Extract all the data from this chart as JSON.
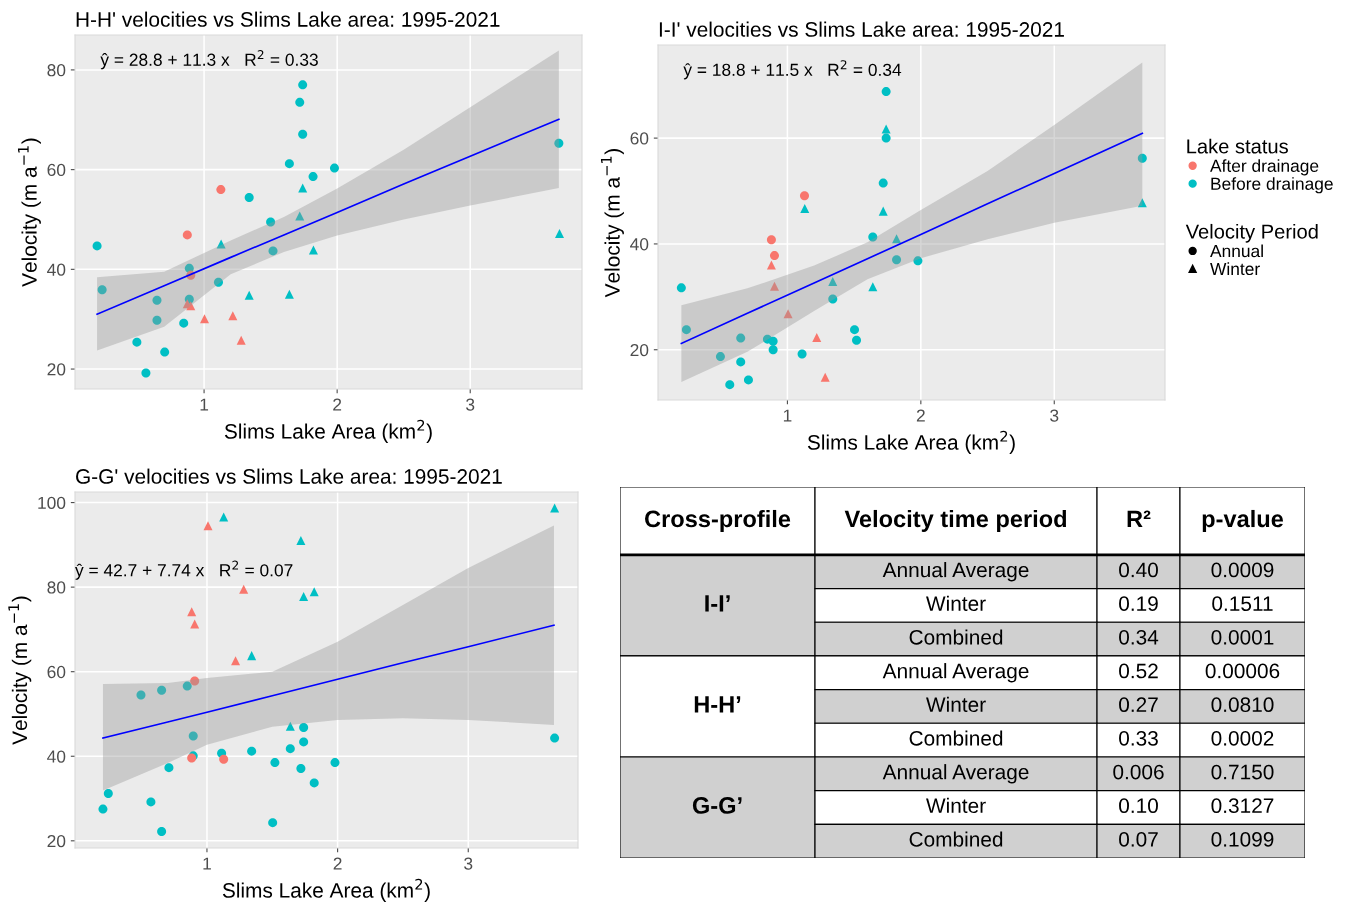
{
  "chart_data": [
    {
      "type": "scatter",
      "title": "H-H' velocities vs Slims Lake area: 1995-2021",
      "xlabel": "Slims Lake Area (km$^{2}$)",
      "ylabel": "Velocity (m a$^{−1}$)",
      "xlim": [
        0.03,
        3.84
      ],
      "ylim": [
        16,
        87
      ],
      "xticks": [
        1,
        2,
        3
      ],
      "yticks": [
        20,
        40,
        60,
        80
      ],
      "grid": true,
      "annotations": [
        "ŷ = 28.8 + 11.3 x   R$^{2}$ = 0.33"
      ],
      "series": [
        {
          "color": "#00bfc4",
          "marker": "circle",
          "x": [
            0.196,
            0.234,
            1.741,
            1.719,
            1.741,
            1.641,
            1.98,
            1.819,
            3.666,
            1.339,
            1.5,
            1.518,
            0.889,
            1.108,
            0.646,
            0.889,
            0.646,
            0.847,
            0.495,
            0.704,
            0.563
          ],
          "values": [
            44.7,
            35.9,
            77.0,
            73.5,
            67.1,
            61.2,
            60.3,
            58.6,
            65.3,
            54.4,
            49.5,
            43.7,
            40.2,
            37.4,
            33.8,
            34.0,
            29.8,
            29.2,
            25.4,
            23.4,
            19.2
          ]
        },
        {
          "color": "#00bfc4",
          "marker": "triangle",
          "x": [
            1.741,
            1.719,
            1.128,
            1.822,
            1.339,
            1.641,
            3.671
          ],
          "values": [
            56.3,
            50.7,
            45.1,
            43.9,
            34.8,
            35.0,
            47.2
          ]
        },
        {
          "color": "#f8766d",
          "marker": "circle",
          "x": [
            1.126,
            0.874,
            0.9
          ],
          "values": [
            56.0,
            46.9,
            38.8
          ]
        },
        {
          "color": "#f8766d",
          "marker": "triangle",
          "x": [
            0.874,
            0.9,
            1.003,
            1.216,
            1.279
          ],
          "values": [
            33.1,
            32.7,
            30.1,
            30.7,
            25.8
          ]
        },
        {
          "type": "line",
          "color": "#0000ff",
          "x": [
            0.196,
            0.7,
            1.2,
            1.6,
            2.0,
            2.5,
            3.0,
            3.666
          ],
          "values": [
            31.0,
            36.7,
            42.4,
            46.9,
            51.4,
            57.1,
            62.7,
            70.1
          ],
          "lower": [
            23.7,
            28.5,
            39.0,
            43.5,
            46.8,
            50.0,
            52.8,
            56.3
          ],
          "upper": [
            38.4,
            39.5,
            45.8,
            50.5,
            56.2,
            64.0,
            72.5,
            83.9
          ]
        }
      ]
    },
    {
      "type": "scatter",
      "title": "I-I' velocities vs Slims Lake area: 1995-2021",
      "xlabel": "Slims Lake Area (km$^{2}$)",
      "ylabel": "Velocity (m a$^{−1}$)",
      "xlim": [
        0.03,
        3.83
      ],
      "ylim": [
        10.5,
        77.6
      ],
      "xticks": [
        1,
        2,
        3
      ],
      "yticks": [
        20,
        40,
        60
      ],
      "grid": true,
      "legend": "right",
      "legend_title": "Lake status",
      "annotations": [
        "ŷ = 18.8 + 11.5 x   R$^{2}$ = 0.34",
        "Velocity Period",
        "Annual",
        "Winter"
      ],
      "series": [
        {
          "name": "After drainage",
          "color": "#f8766d",
          "marker": "circle",
          "x": [
            1.128,
            0.88,
            0.903
          ],
          "values": [
            49.1,
            40.8,
            37.8
          ]
        },
        {
          "color": "#f8766d",
          "marker": "triangle",
          "x": [
            0.88,
            0.903,
            1.005,
            1.22,
            1.283
          ],
          "values": [
            36.0,
            32.0,
            26.8,
            22.3,
            14.8
          ]
        },
        {
          "name": "Before drainage",
          "color": "#00bfc4",
          "marker": "circle",
          "x": [
            0.205,
            0.243,
            1.74,
            1.74,
            1.718,
            3.66,
            1.64,
            1.818,
            1.978,
            1.34,
            0.65,
            0.498,
            0.65,
            0.568,
            0.708,
            0.85,
            0.893,
            0.893,
            1.11,
            1.503,
            1.518
          ],
          "values": [
            31.7,
            23.8,
            68.8,
            60.0,
            51.5,
            56.2,
            41.3,
            37.0,
            36.8,
            29.6,
            22.2,
            18.7,
            17.7,
            13.4,
            14.3,
            22.0,
            21.6,
            20.0,
            19.2,
            23.8,
            21.8
          ]
        },
        {
          "color": "#00bfc4",
          "marker": "triangle",
          "x": [
            1.74,
            1.718,
            1.13,
            1.818,
            1.34,
            1.64,
            3.66
          ],
          "values": [
            61.7,
            46.2,
            46.7,
            41.0,
            32.9,
            31.9,
            47.8
          ]
        },
        {
          "type": "line",
          "color": "#0000ff",
          "x": [
            0.205,
            0.7,
            1.2,
            1.6,
            2.0,
            2.5,
            3.0,
            3.66
          ],
          "values": [
            21.2,
            26.9,
            32.6,
            37.2,
            41.8,
            47.6,
            53.3,
            60.9
          ],
          "lower": [
            13.9,
            19.6,
            27.3,
            33.3,
            37.3,
            40.9,
            44.0,
            47.2
          ],
          "upper": [
            28.4,
            31.6,
            35.9,
            40.3,
            46.4,
            53.8,
            62.5,
            74.3
          ]
        }
      ]
    },
    {
      "type": "scatter",
      "title": "G-G' velocities vs Slims Lake area: 1995-2021",
      "xlabel": "Slims Lake Area (km$^{2}$)",
      "ylabel": "Velocity (m a$^{−1}$)",
      "xlim": [
        -0.01,
        3.84
      ],
      "ylim": [
        18.3,
        102.5
      ],
      "xticks": [
        1,
        2,
        3
      ],
      "yticks": [
        20,
        40,
        60,
        80,
        100
      ],
      "grid": true,
      "annotations": [
        "ŷ = 42.7 + 7.74 x   R$^{2}$ = 0.07"
      ],
      "series": [
        {
          "color": "#00bfc4",
          "marker": "circle",
          "x": [
            0.204,
            0.245,
            0.495,
            0.653,
            0.849,
            0.895,
            0.895,
            0.571,
            0.653,
            0.709,
            1.112,
            1.342,
            1.52,
            1.503,
            1.638,
            1.74,
            1.74,
            1.719,
            1.821,
            1.98,
            3.661
          ],
          "values": [
            27.5,
            31.2,
            54.5,
            55.6,
            56.6,
            44.8,
            40.1,
            29.2,
            22.2,
            37.3,
            40.7,
            41.2,
            38.5,
            24.3,
            41.8,
            46.8,
            43.4,
            37.1,
            33.7,
            38.5,
            44.3
          ]
        },
        {
          "color": "#00bfc4",
          "marker": "triangle",
          "x": [
            1.128,
            1.719,
            1.74,
            1.821,
            1.342,
            1.638,
            3.661
          ],
          "values": [
            96.6,
            91.0,
            77.8,
            78.9,
            63.8,
            47.1,
            98.7
          ]
        },
        {
          "color": "#f8766d",
          "marker": "circle",
          "x": [
            0.906,
            0.883,
            1.128
          ],
          "values": [
            57.8,
            39.6,
            39.3
          ]
        },
        {
          "color": "#f8766d",
          "marker": "triangle",
          "x": [
            1.008,
            1.281,
            0.883,
            0.906,
            1.219
          ],
          "values": [
            94.5,
            79.5,
            74.2,
            71.3,
            62.6
          ]
        },
        {
          "type": "line",
          "color": "#0000ff",
          "x": [
            0.204,
            0.7,
            1.0,
            1.5,
            2.0,
            2.5,
            3.0,
            3.656
          ],
          "values": [
            44.3,
            48.1,
            50.4,
            54.3,
            58.2,
            62.1,
            65.9,
            71.0
          ],
          "lower": [
            31.9,
            38.4,
            42.7,
            47.0,
            48.6,
            49.0,
            48.6,
            47.4
          ],
          "upper": [
            57.1,
            57.3,
            58.5,
            60.0,
            67.1,
            75.8,
            84.5,
            94.6
          ]
        }
      ]
    },
    {
      "type": "other",
      "annotations": [
        "Cross-profile",
        "Velocity time period",
        "R²",
        "p-value",
        "I-I’",
        "Annual Average",
        "0.40",
        "0.0009",
        "Winter",
        "0.19",
        "0.1511",
        "Combined",
        "0.34",
        "0.0001",
        "H-H’",
        "Annual Average",
        "0.52",
        "0.00006",
        "Winter",
        "0.27",
        "0.0810",
        "Combined",
        "0.33",
        "0.0002",
        "G-G’",
        "Annual Average",
        "0.006",
        "0.7150",
        "Winter",
        "0.10",
        "0.3127",
        "Combined",
        "0.07",
        "0.1099"
      ]
    }
  ]
}
